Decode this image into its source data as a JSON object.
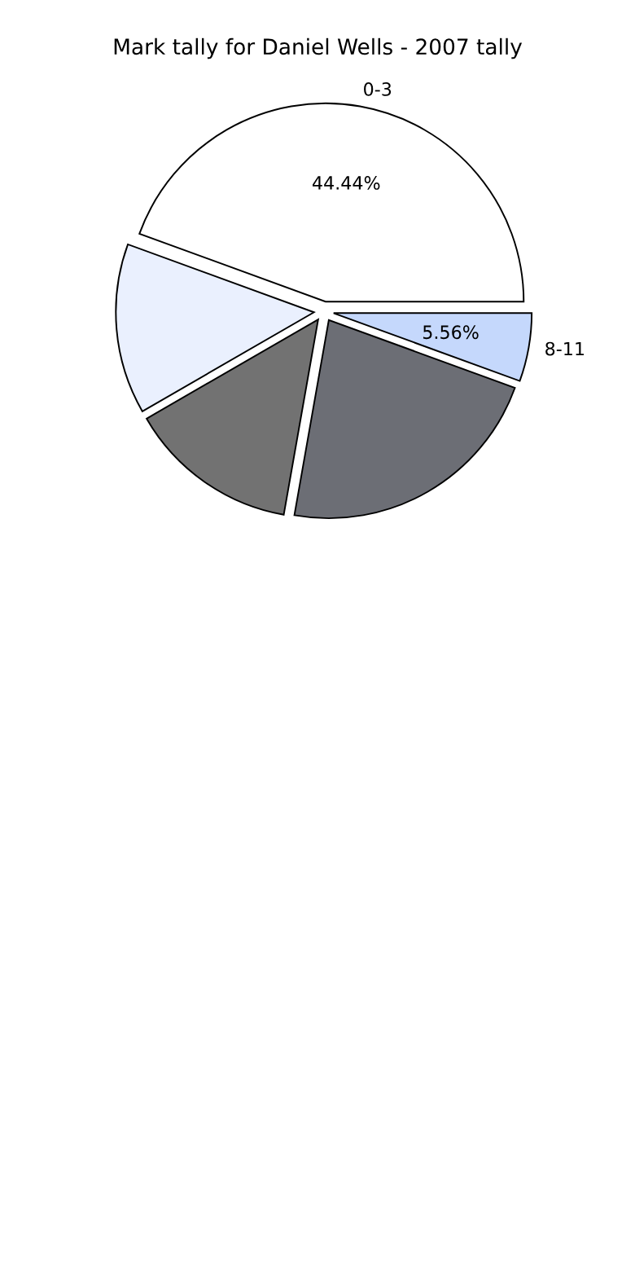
{
  "chart_data": {
    "type": "pie",
    "title": "Mark tally for Daniel Wells - 2007 tally",
    "categories": [
      "0-3",
      null,
      null,
      null,
      "8-11"
    ],
    "values": [
      44.44,
      13.89,
      13.89,
      22.22,
      5.56
    ],
    "colors": [
      "#ffffff",
      "#eaf0fe",
      "#727272",
      "#6c6e75",
      "#c5d8fc"
    ],
    "value_labels": [
      "44.44%",
      null,
      null,
      null,
      "5.56%"
    ]
  }
}
